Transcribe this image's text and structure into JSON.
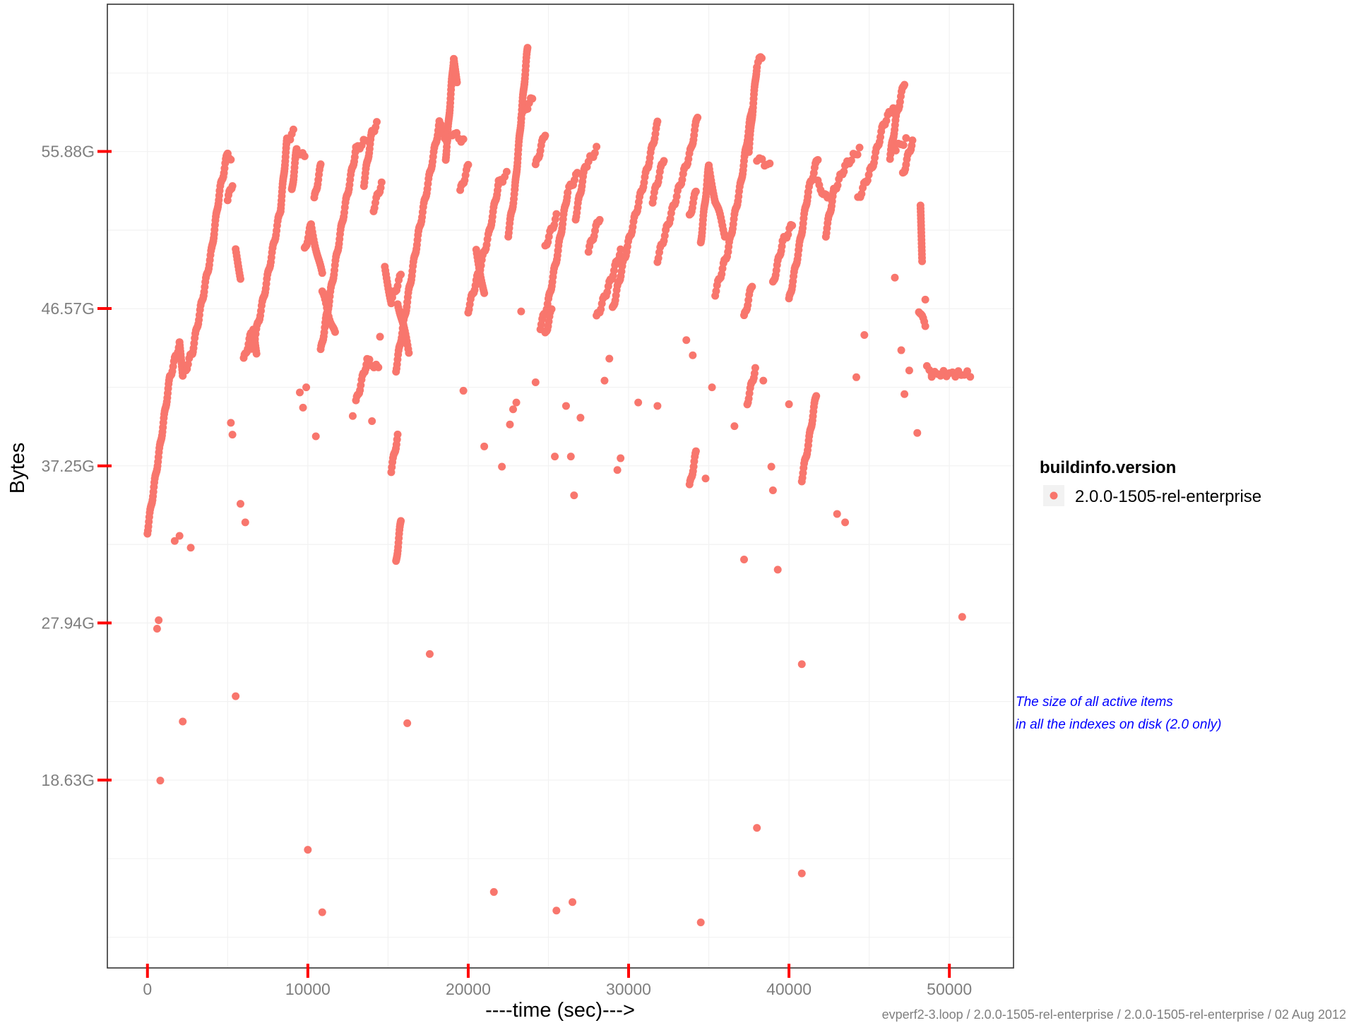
{
  "chart_data": {
    "type": "scatter",
    "xlabel": "----time (sec)--->",
    "ylabel": "Bytes",
    "xlim": [
      -2500,
      54000
    ],
    "ylim": [
      7.5,
      64.6
    ],
    "x_ticks": [
      0,
      10000,
      20000,
      30000,
      40000,
      50000
    ],
    "x_tick_labels": [
      "0",
      "10000",
      "20000",
      "30000",
      "40000",
      "50000"
    ],
    "y_ticks": [
      18.63,
      27.94,
      37.25,
      46.57,
      55.88
    ],
    "y_tick_labels": [
      "18.63G",
      "27.94G",
      "37.25G",
      "46.57G",
      "55.88G"
    ],
    "grid": true,
    "legend": {
      "title": "buildinfo.version",
      "position": "right"
    },
    "annotation": [
      "The size of all active items",
      "in all the indexes on disk (2.0 only)"
    ],
    "caption": "evperf2-3.loop / 2.0.0-1505-rel-enterprise / 2.0.0-1505-rel-enterprise / 02 Aug 2012",
    "point_color": "#F8766D",
    "series": [
      {
        "name": "2.0.0-1505-rel-enterprise",
        "segments": [
          [
            [
              0,
              33.4
            ],
            [
              800,
              38.5
            ],
            [
              1400,
              42.5
            ],
            [
              2000,
              44.5
            ],
            [
              2200,
              42.5
            ],
            [
              2800,
              44.0
            ],
            [
              3500,
              47.5
            ],
            [
              4000,
              50.0
            ],
            [
              4500,
              53.5
            ],
            [
              5000,
              55.8
            ],
            [
              5200,
              55.5
            ]
          ],
          [
            [
              5000,
              53.0
            ],
            [
              5300,
              54.0
            ]
          ],
          [
            [
              5500,
              50.0
            ],
            [
              5800,
              48.5
            ]
          ],
          [
            [
              6000,
              43.5
            ],
            [
              6600,
              45.5
            ],
            [
              6800,
              44.0
            ]
          ],
          [
            [
              6500,
              44.0
            ],
            [
              7200,
              47.0
            ],
            [
              7800,
              50.0
            ],
            [
              8300,
              52.5
            ],
            [
              8700,
              56.5
            ],
            [
              9100,
              57.0
            ]
          ],
          [
            [
              9000,
              53.5
            ],
            [
              9300,
              56.0
            ],
            [
              9800,
              55.5
            ]
          ],
          [
            [
              9800,
              50.0
            ],
            [
              10200,
              51.5
            ],
            [
              10900,
              48.5
            ]
          ],
          [
            [
              10400,
              53.0
            ],
            [
              10800,
              55.0
            ]
          ],
          [
            [
              10900,
              47.5
            ],
            [
              11700,
              45.0
            ]
          ],
          [
            [
              10800,
              44.0
            ],
            [
              11500,
              48.0
            ],
            [
              12200,
              52.0
            ],
            [
              13000,
              56.0
            ],
            [
              13600,
              56.5
            ]
          ],
          [
            [
              13500,
              54.0
            ],
            [
              14000,
              57.0
            ],
            [
              14300,
              57.5
            ]
          ],
          [
            [
              14100,
              52.5
            ],
            [
              14600,
              54.0
            ]
          ],
          [
            [
              13000,
              41.0
            ],
            [
              13700,
              43.5
            ],
            [
              14400,
              43.0
            ]
          ],
          [
            [
              14800,
              49.0
            ],
            [
              15200,
              47.0
            ],
            [
              15800,
              48.5
            ]
          ],
          [
            [
              15600,
              47.0
            ],
            [
              16300,
              44.0
            ]
          ],
          [
            [
              15500,
              43.0
            ],
            [
              16200,
              47.0
            ],
            [
              16900,
              51.0
            ],
            [
              17600,
              54.5
            ],
            [
              18200,
              57.5
            ],
            [
              18700,
              56.5
            ]
          ],
          [
            [
              18600,
              55.5
            ],
            [
              19100,
              61.5
            ],
            [
              19300,
              60.0
            ]
          ],
          [
            [
              19000,
              57.0
            ],
            [
              19700,
              56.5
            ]
          ],
          [
            [
              19500,
              53.5
            ],
            [
              20000,
              55.0
            ]
          ],
          [
            [
              20500,
              50.0
            ],
            [
              21000,
              47.5
            ]
          ],
          [
            [
              20000,
              46.5
            ],
            [
              20600,
              48.5
            ],
            [
              21300,
              51.0
            ],
            [
              21900,
              54.0
            ],
            [
              22400,
              54.5
            ]
          ],
          [
            [
              22500,
              51.0
            ],
            [
              22900,
              53.5
            ],
            [
              23500,
              60.0
            ],
            [
              23700,
              62.0
            ]
          ],
          [
            [
              23300,
              58.0
            ],
            [
              24000,
              59.0
            ]
          ],
          [
            [
              24200,
              55.0
            ],
            [
              24800,
              57.0
            ]
          ],
          [
            [
              24900,
              50.5
            ],
            [
              25500,
              52.0
            ]
          ],
          [
            [
              24500,
              45.5
            ],
            [
              25000,
              47.0
            ],
            [
              25600,
              50.0
            ],
            [
              26200,
              53.5
            ],
            [
              26800,
              54.5
            ]
          ],
          [
            [
              26700,
              52.0
            ],
            [
              27300,
              55.0
            ],
            [
              28000,
              56.0
            ]
          ],
          [
            [
              27500,
              50.0
            ],
            [
              28200,
              52.0
            ]
          ],
          [
            [
              28000,
              46.0
            ],
            [
              28800,
              48.0
            ],
            [
              29500,
              50.0
            ]
          ],
          [
            [
              29000,
              46.5
            ],
            [
              29600,
              49.0
            ],
            [
              30400,
              52.0
            ],
            [
              31200,
              55.0
            ],
            [
              31800,
              57.5
            ]
          ],
          [
            [
              31500,
              53.0
            ],
            [
              32200,
              55.5
            ]
          ],
          [
            [
              31800,
              49.5
            ],
            [
              32600,
              52.0
            ],
            [
              33400,
              54.5
            ],
            [
              33900,
              56.0
            ],
            [
              34300,
              58.0
            ]
          ],
          [
            [
              33800,
              52.0
            ],
            [
              34200,
              53.5
            ]
          ],
          [
            [
              34500,
              50.5
            ],
            [
              35000,
              55.0
            ],
            [
              35400,
              53.0
            ],
            [
              36000,
              51.0
            ]
          ],
          [
            [
              35400,
              47.5
            ],
            [
              36200,
              50.0
            ],
            [
              37000,
              54.0
            ],
            [
              37700,
              58.5
            ]
          ],
          [
            [
              37500,
              56.0
            ],
            [
              38000,
              61.0
            ],
            [
              38300,
              61.5
            ]
          ],
          [
            [
              38000,
              55.5
            ],
            [
              38800,
              55.0
            ]
          ],
          [
            [
              37200,
              46.0
            ],
            [
              37700,
              48.0
            ]
          ],
          [
            [
              37400,
              41.0
            ],
            [
              37900,
              43.0
            ]
          ],
          [
            [
              39000,
              48.0
            ],
            [
              39600,
              50.5
            ],
            [
              40200,
              51.5
            ]
          ],
          [
            [
              40000,
              47.0
            ],
            [
              40600,
              50.0
            ],
            [
              41200,
              53.5
            ],
            [
              41800,
              55.5
            ]
          ],
          [
            [
              41800,
              54.0
            ],
            [
              42400,
              53.0
            ]
          ],
          [
            [
              42300,
              51.0
            ],
            [
              42800,
              53.5
            ],
            [
              43500,
              55.0
            ],
            [
              44400,
              56.0
            ]
          ],
          [
            [
              44300,
              53.0
            ],
            [
              45200,
              55.0
            ],
            [
              45900,
              57.5
            ],
            [
              46500,
              58.5
            ]
          ],
          [
            [
              46300,
              55.5
            ],
            [
              46700,
              58.0
            ],
            [
              47200,
              60.0
            ]
          ],
          [
            [
              46500,
              56.0
            ],
            [
              47300,
              56.5
            ]
          ],
          [
            [
              47100,
              54.5
            ],
            [
              47700,
              56.5
            ]
          ],
          [
            [
              48200,
              52.5
            ],
            [
              48300,
              49.5
            ]
          ],
          [
            [
              48100,
              46.5
            ],
            [
              48500,
              45.5
            ]
          ],
          [
            [
              48600,
              43.0
            ],
            [
              48900,
              42.8
            ]
          ],
          [
            [
              48900,
              42.7
            ],
            [
              51300,
              42.7
            ]
          ],
          [
            [
              40800,
              36.5
            ],
            [
              41200,
              38.5
            ],
            [
              41700,
              41.5
            ]
          ],
          [
            [
              15500,
              31.5
            ],
            [
              15800,
              34.0
            ]
          ],
          [
            [
              15200,
              37.0
            ],
            [
              15600,
              39.0
            ]
          ],
          [
            [
              24800,
              45.0
            ],
            [
              25200,
              46.5
            ]
          ],
          [
            [
              33800,
              36.0
            ],
            [
              34200,
              38.0
            ]
          ]
        ],
        "points": [
          [
            600,
            27.6
          ],
          [
            700,
            28.1
          ],
          [
            800,
            18.6
          ],
          [
            1700,
            32.8
          ],
          [
            2000,
            33.1
          ],
          [
            2200,
            22.1
          ],
          [
            2700,
            32.4
          ],
          [
            5200,
            39.8
          ],
          [
            5300,
            39.1
          ],
          [
            5500,
            23.6
          ],
          [
            5800,
            35.0
          ],
          [
            6100,
            33.9
          ],
          [
            9500,
            41.6
          ],
          [
            9700,
            40.7
          ],
          [
            9900,
            41.9
          ],
          [
            10000,
            14.5
          ],
          [
            10500,
            39.0
          ],
          [
            10900,
            10.8
          ],
          [
            12800,
            40.2
          ],
          [
            14000,
            39.9
          ],
          [
            14500,
            44.9
          ],
          [
            16200,
            22.0
          ],
          [
            17600,
            26.1
          ],
          [
            19700,
            41.7
          ],
          [
            21000,
            38.4
          ],
          [
            21600,
            12.0
          ],
          [
            22100,
            37.2
          ],
          [
            22600,
            39.7
          ],
          [
            22800,
            40.6
          ],
          [
            23000,
            41.0
          ],
          [
            23300,
            46.4
          ],
          [
            24200,
            42.2
          ],
          [
            24800,
            50.3
          ],
          [
            25400,
            37.8
          ],
          [
            25500,
            10.9
          ],
          [
            26100,
            40.8
          ],
          [
            26400,
            37.8
          ],
          [
            26500,
            11.4
          ],
          [
            26600,
            35.5
          ],
          [
            27000,
            40.1
          ],
          [
            28500,
            42.3
          ],
          [
            28800,
            43.6
          ],
          [
            29300,
            37.0
          ],
          [
            29500,
            37.7
          ],
          [
            30600,
            41.0
          ],
          [
            31800,
            40.8
          ],
          [
            33600,
            44.7
          ],
          [
            34000,
            43.8
          ],
          [
            34500,
            10.2
          ],
          [
            34800,
            36.5
          ],
          [
            35200,
            41.9
          ],
          [
            36600,
            39.6
          ],
          [
            37200,
            31.7
          ],
          [
            38000,
            15.8
          ],
          [
            38400,
            42.3
          ],
          [
            38900,
            37.2
          ],
          [
            39000,
            35.8
          ],
          [
            39300,
            31.1
          ],
          [
            40000,
            40.9
          ],
          [
            40800,
            25.5
          ],
          [
            40800,
            13.1
          ],
          [
            43000,
            34.4
          ],
          [
            43500,
            33.9
          ],
          [
            44200,
            42.5
          ],
          [
            44700,
            45.0
          ],
          [
            46600,
            48.4
          ],
          [
            47000,
            44.1
          ],
          [
            47200,
            41.5
          ],
          [
            47500,
            42.9
          ],
          [
            48000,
            39.2
          ],
          [
            48500,
            47.1
          ],
          [
            50800,
            28.3
          ]
        ]
      }
    ]
  }
}
